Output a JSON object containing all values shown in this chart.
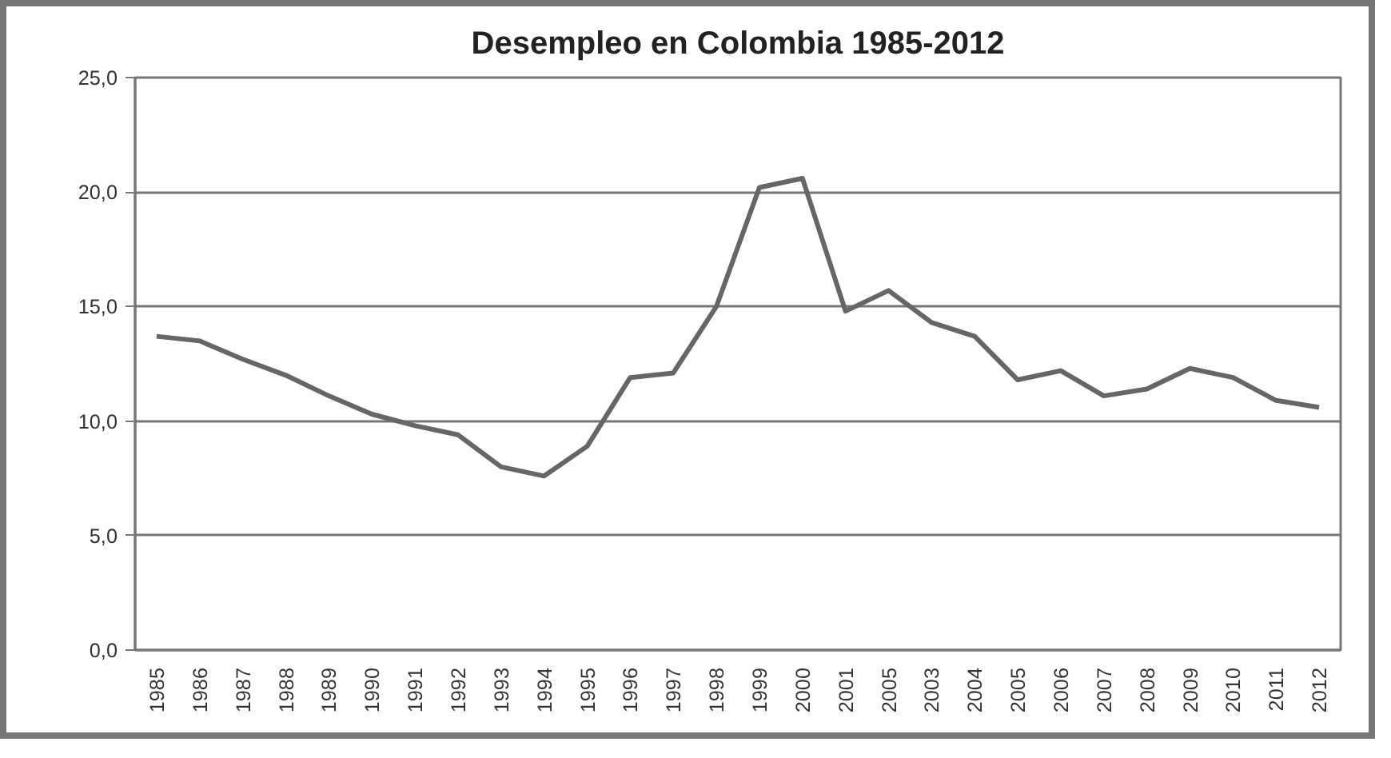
{
  "chart_data": {
    "type": "line",
    "title": "Desempleo en Colombia 1985-2012",
    "categories": [
      "1985",
      "1986",
      "1987",
      "1988",
      "1989",
      "1990",
      "1991",
      "1992",
      "1993",
      "1994",
      "1995",
      "1996",
      "1997",
      "1998",
      "1999",
      "2000",
      "2001",
      "2005",
      "2003",
      "2004",
      "2005",
      "2006",
      "2007",
      "2008",
      "2009",
      "2010",
      "2011",
      "2012"
    ],
    "series": [
      {
        "color": "#666666",
        "values": [
          13.7,
          13.5,
          12.7,
          12.0,
          11.1,
          10.3,
          9.8,
          9.4,
          8.0,
          7.6,
          8.9,
          11.9,
          12.1,
          15.0,
          20.2,
          20.6,
          14.8,
          15.7,
          14.3,
          13.7,
          11.8,
          12.2,
          11.1,
          11.4,
          12.3,
          11.9,
          10.9,
          10.6
        ]
      }
    ],
    "ylim": [
      0,
      25
    ],
    "yticks": [
      {
        "value": 0,
        "label": "0,0"
      },
      {
        "value": 5,
        "label": "5,0"
      },
      {
        "value": 10,
        "label": "10,0"
      },
      {
        "value": 15,
        "label": "15,0"
      },
      {
        "value": 20,
        "label": "20,0"
      },
      {
        "value": 25,
        "label": "25,0"
      }
    ],
    "grid": "y",
    "marker": "none",
    "line_style": "solid"
  }
}
